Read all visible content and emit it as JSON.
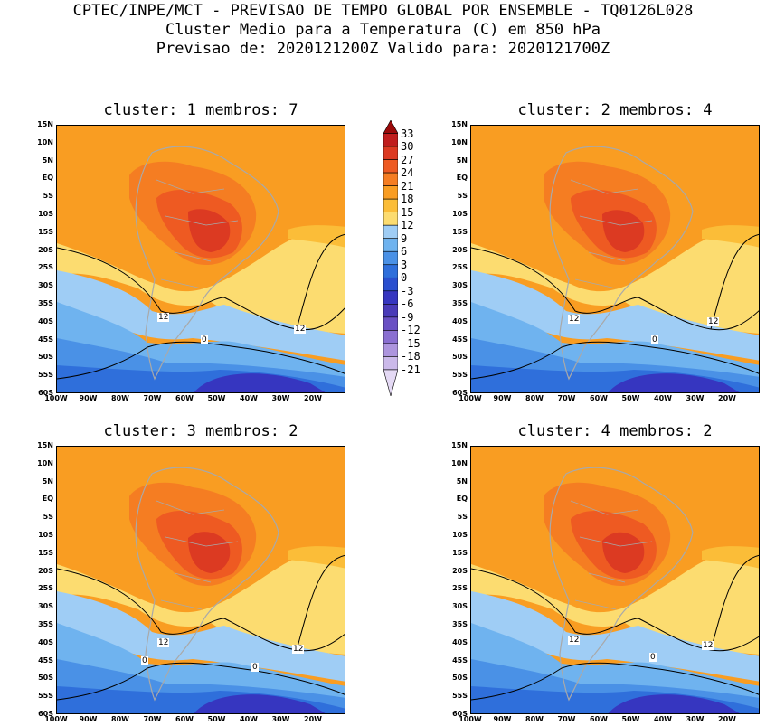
{
  "header": {
    "line1": "CPTEC/INPE/MCT - PREVISAO DE TEMPO GLOBAL POR ENSEMBLE - TQ0126L028",
    "line2": "Cluster Medio para a Temperatura (C) em 850 hPa",
    "line3": "Previsao de: 2020121200Z   Valido para: 2020121700Z"
  },
  "lat_labels": [
    "15N",
    "10N",
    "5N",
    "EQ",
    "5S",
    "10S",
    "15S",
    "20S",
    "25S",
    "30S",
    "35S",
    "40S",
    "45S",
    "50S",
    "55S",
    "60S"
  ],
  "lon_labels": [
    "100W",
    "90W",
    "80W",
    "70W",
    "60W",
    "50W",
    "40W",
    "30W",
    "20W"
  ],
  "panels": [
    {
      "title": "cluster: 1   membros: 7",
      "contour_labels": [
        "12",
        "12",
        "0"
      ]
    },
    {
      "title": "cluster: 2   membros: 4",
      "contour_labels": [
        "12",
        "12",
        "0"
      ]
    },
    {
      "title": "cluster: 3   membros: 2",
      "contour_labels": [
        "12",
        "12",
        "0",
        "0"
      ]
    },
    {
      "title": "cluster: 4   membros: 2",
      "contour_labels": [
        "12",
        "12",
        "0"
      ]
    }
  ],
  "colorbar": {
    "levels": [
      "33",
      "30",
      "27",
      "24",
      "21",
      "18",
      "15",
      "12",
      "9",
      "6",
      "3",
      "0",
      "-3",
      "-6",
      "-9",
      "-12",
      "-15",
      "-18",
      "-21"
    ],
    "colors": [
      "#9b0a0a",
      "#c01e1e",
      "#dc3a22",
      "#ee5a22",
      "#f57d22",
      "#f99d22",
      "#fbbd38",
      "#fcdc70",
      "#9fcdf5",
      "#6fb3ef",
      "#4a91e6",
      "#2f6fdb",
      "#2a4fcf",
      "#3636c0",
      "#4a3bb8",
      "#6a50c4",
      "#8a6fd1",
      "#ad95de",
      "#cbb9ea",
      "#e4d9f4"
    ]
  },
  "colors": {
    "land": "#a9a9a9",
    "contour": "#000000"
  }
}
